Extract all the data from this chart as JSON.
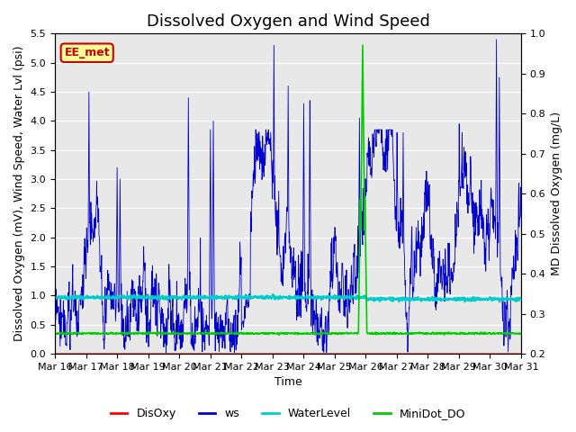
{
  "title": "Dissolved Oxygen and Wind Speed",
  "ylabel_left": "Dissolved Oxygen (mV), Wind Speed, Water Lvl (psi)",
  "ylabel_right": "MD Dissolved Oxygen (mg/L)",
  "xlabel": "Time",
  "ylim_left": [
    0.0,
    5.5
  ],
  "ylim_right": [
    0.2,
    1.0
  ],
  "annotation_text": "EE_met",
  "annotation_color": "#cc0000",
  "annotation_bg": "#ffff99",
  "x_tick_labels": [
    "Mar 16",
    "Mar 17",
    "Mar 18",
    "Mar 19",
    "Mar 20",
    "Mar 21",
    "Mar 22",
    "Mar 23",
    "Mar 24",
    "Mar 25",
    "Mar 26",
    "Mar 27",
    "Mar 28",
    "Mar 29",
    "Mar 30",
    "Mar 31"
  ],
  "colors": {
    "DisOxy": "#ff0000",
    "ws": "#0000cc",
    "WaterLevel": "#00cccc",
    "MiniDot_DO": "#00cc00"
  },
  "bg_color": "#e8e8e8",
  "grid_color": "#ffffff",
  "title_fontsize": 13,
  "axis_fontsize": 9,
  "tick_fontsize": 8,
  "yticks_left": [
    0.0,
    0.5,
    1.0,
    1.5,
    2.0,
    2.5,
    3.0,
    3.5,
    4.0,
    4.5,
    5.0,
    5.5
  ],
  "yticks_right": [
    0.2,
    0.3,
    0.4,
    0.5,
    0.6,
    0.7,
    0.8,
    0.9,
    1.0
  ]
}
